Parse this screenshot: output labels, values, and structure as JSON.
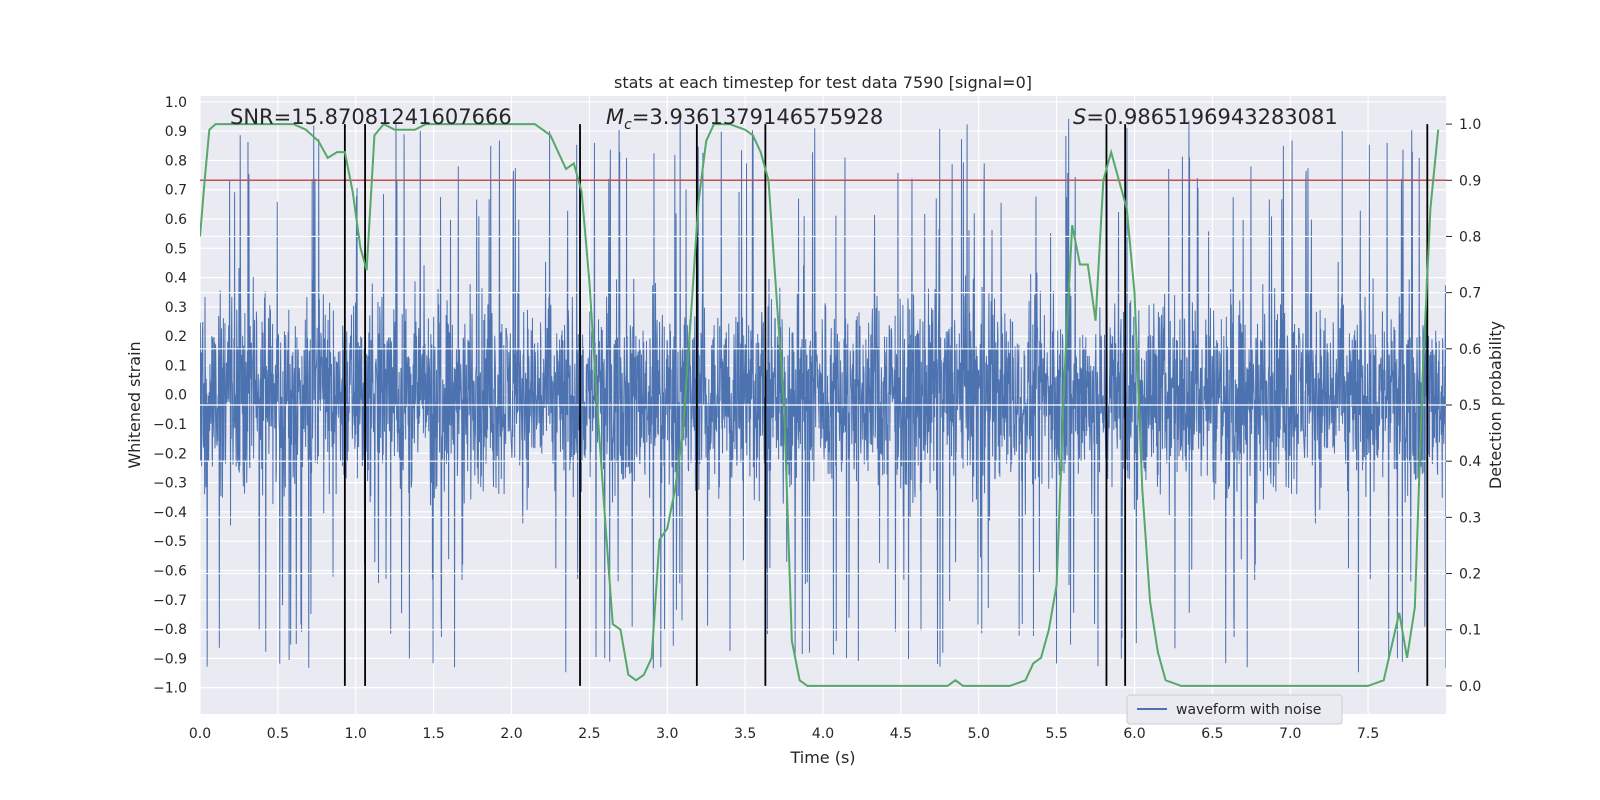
{
  "chart_data": {
    "type": "line",
    "title": "stats at each timestep for test data 7590 [signal=0]",
    "xlabel": "Time (s)",
    "ylabel_left": "Whitened strain",
    "ylabel_right": "Detection probability",
    "xlim": [
      0.0,
      8.0
    ],
    "ylim_left": [
      -1.09,
      1.02
    ],
    "ylim_right": [
      -0.05,
      1.05
    ],
    "x_ticks": [
      0.0,
      0.5,
      1.0,
      1.5,
      2.0,
      2.5,
      3.0,
      3.5,
      4.0,
      4.5,
      5.0,
      5.5,
      6.0,
      6.5,
      7.0,
      7.5
    ],
    "x_tick_labels": [
      "0.0",
      "0.5",
      "1.0",
      "1.5",
      "2.0",
      "2.5",
      "3.0",
      "3.5",
      "4.0",
      "4.5",
      "5.0",
      "5.5",
      "6.0",
      "6.5",
      "7.0",
      "7.5"
    ],
    "y_left_ticks": [
      1.0,
      0.9,
      0.8,
      0.7,
      0.6,
      0.5,
      0.4,
      0.3,
      0.2,
      0.1,
      0.0,
      -0.1,
      -0.2,
      -0.3,
      -0.4,
      -0.5,
      -0.6,
      -0.7,
      -0.8,
      -0.9,
      -1.0
    ],
    "y_left_tick_labels": [
      "1.0",
      "0.9",
      "0.8",
      "0.7",
      "0.6",
      "0.5",
      "0.4",
      "0.3",
      "0.2",
      "0.1",
      "0.0",
      "−0.1",
      "−0.2",
      "−0.3",
      "−0.4",
      "−0.5",
      "−0.6",
      "−0.7",
      "−0.8",
      "−0.9",
      "−1.0"
    ],
    "y_right_ticks": [
      1.0,
      0.9,
      0.8,
      0.7,
      0.6,
      0.5,
      0.4,
      0.3,
      0.2,
      0.1,
      0.0
    ],
    "y_right_tick_labels": [
      "1.0",
      "0.9",
      "0.8",
      "0.7",
      "0.6",
      "0.5",
      "0.4",
      "0.3",
      "0.2",
      "0.1",
      "0.0"
    ],
    "threshold": 0.9,
    "annotations": {
      "snr": "SNR=15.87081241607666",
      "mc_symbol": "M",
      "mc_sub": "c",
      "mc_value": "=3.9361379146575928",
      "s_symbol": "S",
      "s_value": "=0.9865196943283081"
    },
    "vertical_lines_x": [
      0.93,
      1.06,
      2.44,
      3.19,
      3.63,
      5.82,
      5.94,
      7.88
    ],
    "legend": {
      "label": "waveform with noise",
      "location": "lower-right"
    },
    "series": [
      {
        "name": "waveform with noise",
        "axis": "left",
        "style": "dense noisy waveform",
        "n_samples": 4000,
        "envelope_typical": [
          -0.45,
          0.55
        ],
        "envelope_extreme": [
          -1.0,
          0.96
        ]
      },
      {
        "name": "detection probability",
        "axis": "right",
        "x": [
          0.0,
          0.03,
          0.06,
          0.1,
          0.15,
          0.3,
          0.5,
          0.6,
          0.68,
          0.76,
          0.82,
          0.88,
          0.93,
          0.98,
          1.03,
          1.07,
          1.12,
          1.18,
          1.25,
          1.32,
          1.38,
          1.45,
          1.55,
          1.65,
          1.75,
          1.85,
          1.95,
          2.05,
          2.15,
          2.25,
          2.35,
          2.4,
          2.45,
          2.5,
          2.55,
          2.6,
          2.65,
          2.7,
          2.75,
          2.8,
          2.85,
          2.9,
          2.95,
          3.0,
          3.05,
          3.1,
          3.15,
          3.2,
          3.25,
          3.3,
          3.4,
          3.5,
          3.55,
          3.6,
          3.65,
          3.7,
          3.75,
          3.8,
          3.85,
          3.9,
          4.0,
          4.2,
          4.5,
          4.8,
          4.85,
          4.9,
          5.0,
          5.1,
          5.2,
          5.3,
          5.35,
          5.4,
          5.45,
          5.5,
          5.55,
          5.6,
          5.65,
          5.7,
          5.75,
          5.8,
          5.85,
          5.9,
          5.95,
          6.0,
          6.05,
          6.1,
          6.15,
          6.2,
          6.3,
          6.5,
          7.0,
          7.4,
          7.5,
          7.6,
          7.7,
          7.75,
          7.8,
          7.85,
          7.9,
          7.95
        ],
        "values": [
          0.8,
          0.9,
          0.99,
          1.0,
          1.0,
          1.0,
          1.0,
          1.0,
          0.99,
          0.97,
          0.94,
          0.95,
          0.95,
          0.88,
          0.78,
          0.74,
          0.98,
          1.0,
          0.99,
          0.99,
          0.99,
          1.0,
          1.0,
          1.0,
          1.0,
          1.0,
          1.0,
          1.0,
          1.0,
          0.98,
          0.92,
          0.93,
          0.88,
          0.72,
          0.5,
          0.3,
          0.11,
          0.1,
          0.02,
          0.01,
          0.02,
          0.05,
          0.26,
          0.28,
          0.35,
          0.45,
          0.65,
          0.86,
          0.97,
          1.0,
          1.0,
          0.99,
          0.98,
          0.95,
          0.9,
          0.7,
          0.5,
          0.08,
          0.01,
          0.0,
          0.0,
          0.0,
          0.0,
          0.0,
          0.01,
          0.0,
          0.0,
          0.0,
          0.0,
          0.01,
          0.04,
          0.05,
          0.1,
          0.18,
          0.55,
          0.82,
          0.75,
          0.75,
          0.65,
          0.9,
          0.95,
          0.9,
          0.85,
          0.7,
          0.35,
          0.15,
          0.06,
          0.01,
          0.0,
          0.0,
          0.0,
          0.0,
          0.0,
          0.01,
          0.13,
          0.05,
          0.14,
          0.55,
          0.85,
          0.99
        ]
      }
    ]
  }
}
